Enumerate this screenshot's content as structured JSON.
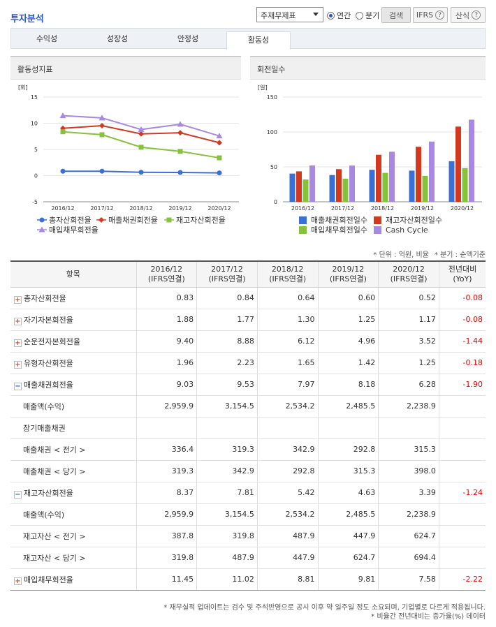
{
  "header": {
    "title": "투자분석",
    "select": "주재무제표",
    "radios": [
      {
        "label": "연간",
        "checked": true
      },
      {
        "label": "분기",
        "checked": false
      }
    ],
    "buttons": [
      "검색",
      "IFRS",
      "산식"
    ],
    "help": "?"
  },
  "tabs": {
    "items": [
      "수익성",
      "성장성",
      "안정성",
      "활동성"
    ],
    "active": 3
  },
  "chart_data": [
    {
      "type": "line",
      "title": "활동성지표",
      "unit": "[회]",
      "categories": [
        "2016/12",
        "2017/12",
        "2018/12",
        "2019/12",
        "2020/12"
      ],
      "ylim": [
        -5,
        15
      ],
      "yticks": [
        -5,
        0,
        5,
        10,
        15
      ],
      "grid": true,
      "series": [
        {
          "name": "총자산회전율",
          "color": "#3a6fd6",
          "marker": "circle",
          "values": [
            0.83,
            0.84,
            0.64,
            0.6,
            0.52
          ]
        },
        {
          "name": "매출채권회전율",
          "color": "#d2391f",
          "marker": "diamond",
          "values": [
            9.03,
            9.53,
            7.97,
            8.18,
            6.28
          ]
        },
        {
          "name": "재고자산회전율",
          "color": "#86c23a",
          "marker": "square",
          "values": [
            8.37,
            7.81,
            5.42,
            4.63,
            3.39
          ]
        },
        {
          "name": "매입채무회전율",
          "color": "#a888e0",
          "marker": "triangle",
          "values": [
            11.45,
            11.02,
            8.81,
            9.81,
            7.58
          ]
        }
      ]
    },
    {
      "type": "bar",
      "title": "회전일수",
      "unit": "[일]",
      "categories": [
        "2016/12",
        "2017/12",
        "2018/12",
        "2019/12",
        "2020/12"
      ],
      "ylim": [
        0,
        150
      ],
      "yticks": [
        0,
        50,
        100,
        150
      ],
      "grid": true,
      "series": [
        {
          "name": "매출채권회전일수",
          "color": "#3a6fd6",
          "values": [
            40.4,
            38.3,
            45.8,
            44.6,
            58.1
          ]
        },
        {
          "name": "재고자산회전일수",
          "color": "#d2391f",
          "values": [
            43.6,
            46.7,
            67.3,
            78.8,
            107.7
          ]
        },
        {
          "name": "매입채무회전일수",
          "color": "#86c23a",
          "values": [
            31.9,
            33.1,
            41.4,
            37.2,
            48.2
          ]
        },
        {
          "name": "Cash Cycle",
          "color": "#a888e0",
          "values": [
            52.1,
            51.9,
            71.7,
            86.2,
            117.6
          ]
        }
      ]
    }
  ],
  "unit_notes": [
    "* 단위 : 억원, 비율",
    "* 분기 : 순액기준"
  ],
  "table": {
    "item_header": "항목",
    "periods": [
      {
        "period": "2016/12",
        "basis": "(IFRS연결)"
      },
      {
        "period": "2017/12",
        "basis": "(IFRS연결)"
      },
      {
        "period": "2018/12",
        "basis": "(IFRS연결)"
      },
      {
        "period": "2019/12",
        "basis": "(IFRS연결)"
      },
      {
        "period": "2020/12",
        "basis": "(IFRS연결)"
      }
    ],
    "yoy_header": {
      "label": "전년대비",
      "sub": "(YoY)"
    },
    "rows": [
      {
        "label": "총자산회전율",
        "toggle": "closed",
        "values": [
          "0.83",
          "0.84",
          "0.64",
          "0.60",
          "0.52"
        ],
        "yoy": "-0.08"
      },
      {
        "label": "자기자본회전율",
        "toggle": "closed",
        "values": [
          "1.88",
          "1.77",
          "1.30",
          "1.25",
          "1.17"
        ],
        "yoy": "-0.08"
      },
      {
        "label": "순운전자본회전율",
        "toggle": "closed",
        "values": [
          "9.40",
          "8.88",
          "6.12",
          "4.96",
          "3.52"
        ],
        "yoy": "-1.44"
      },
      {
        "label": "유형자산회전율",
        "toggle": "closed",
        "values": [
          "1.96",
          "2.23",
          "1.65",
          "1.42",
          "1.25"
        ],
        "yoy": "-0.18"
      },
      {
        "label": "매출채권회전율",
        "toggle": "open",
        "values": [
          "9.03",
          "9.53",
          "7.97",
          "8.18",
          "6.28"
        ],
        "yoy": "-1.90"
      },
      {
        "label": "매출액(수익)",
        "values": [
          "2,959.9",
          "3,154.5",
          "2,534.2",
          "2,485.5",
          "2,238.9"
        ],
        "yoy": null
      },
      {
        "label": "장기매출채권",
        "values": [
          null,
          null,
          null,
          null,
          null
        ],
        "yoy": null
      },
      {
        "label": "매출채권 < 전기 >",
        "values": [
          "336.4",
          "319.3",
          "342.9",
          "292.8",
          "315.3"
        ],
        "yoy": null
      },
      {
        "label": "매출채권 < 당기 >",
        "values": [
          "319.3",
          "342.9",
          "292.8",
          "315.3",
          "398.0"
        ],
        "yoy": null
      },
      {
        "label": "재고자산회전율",
        "toggle": "open",
        "values": [
          "8.37",
          "7.81",
          "5.42",
          "4.63",
          "3.39"
        ],
        "yoy": "-1.24"
      },
      {
        "label": "매출액(수익)",
        "values": [
          "2,959.9",
          "3,154.5",
          "2,534.2",
          "2,485.5",
          "2,238.9"
        ],
        "yoy": null
      },
      {
        "label": "재고자산 < 전기 >",
        "values": [
          "387.8",
          "319.8",
          "487.9",
          "447.9",
          "624.7"
        ],
        "yoy": null
      },
      {
        "label": "재고자산 < 당기 >",
        "values": [
          "319.8",
          "487.9",
          "447.9",
          "624.7",
          "694.4"
        ],
        "yoy": null
      },
      {
        "label": "매입채무회전율",
        "toggle": "closed",
        "values": [
          "11.45",
          "11.02",
          "8.81",
          "9.81",
          "7.58"
        ],
        "yoy": "-2.22"
      }
    ]
  },
  "footnotes": [
    "* 재무실적 업데이트는 검수 및 주석반영으로 공시 이후 약 일주일 정도 소요되며, 기업별로 다르게 적용됩니다.",
    "* 비율간 전년대비는 증가율(%) 데이터"
  ]
}
